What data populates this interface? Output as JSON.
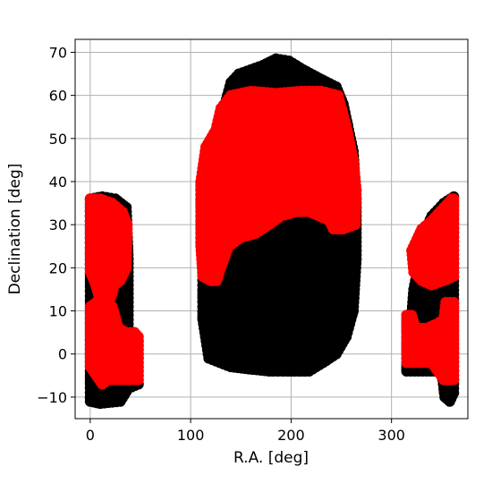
{
  "chart_data": {
    "type": "scatter",
    "title": "",
    "xlabel": "R.A. [deg]",
    "ylabel": "Declination [deg]",
    "xlim": [
      -15,
      376
    ],
    "ylim": [
      -15,
      73
    ],
    "xticks": [
      0,
      100,
      200,
      300
    ],
    "yticks": [
      -10,
      0,
      10,
      20,
      30,
      40,
      50,
      60,
      70
    ],
    "grid": true,
    "colors": {
      "black_series": "#000000",
      "red_series": "#ff0000",
      "grid": "#b0b0b0"
    },
    "series": [
      {
        "color": "#000000",
        "regions": [
          {
            "outline": [
              [
                0,
                -11
              ],
              [
                0,
                36
              ],
              [
                12,
                36.5
              ],
              [
                25,
                36
              ],
              [
                36,
                34
              ],
              [
                38,
                22
              ],
              [
                38,
                5
              ],
              [
                44,
                5
              ],
              [
                48,
                3
              ],
              [
                48,
                -7
              ],
              [
                38,
                -8
              ],
              [
                30,
                -11
              ],
              [
                10,
                -11.5
              ]
            ]
          },
          {
            "outline": [
              [
                125,
                48
              ],
              [
                133,
                57
              ],
              [
                140,
                63
              ],
              [
                148,
                65
              ],
              [
                160,
                66
              ],
              [
                172,
                67
              ],
              [
                185,
                68.5
              ],
              [
                198,
                68
              ],
              [
                212,
                66
              ],
              [
                228,
                64
              ],
              [
                245,
                62
              ],
              [
                252,
                58
              ],
              [
                262,
                47
              ],
              [
                265,
                36
              ],
              [
                265,
                22
              ],
              [
                262,
                10
              ],
              [
                255,
                4
              ],
              [
                245,
                0
              ],
              [
                232,
                -2
              ],
              [
                218,
                -4
              ],
              [
                200,
                -4
              ],
              [
                178,
                -4
              ],
              [
                158,
                -3.5
              ],
              [
                140,
                -3
              ],
              [
                118,
                -1
              ],
              [
                112,
                8
              ],
              [
                112,
                30
              ],
              [
                115,
                40
              ]
            ]
          },
          {
            "outline": [
              [
                315,
                -4
              ],
              [
                315,
                9
              ],
              [
                320,
                9
              ],
              [
                322,
                15
              ],
              [
                328,
                22
              ],
              [
                330,
                27
              ],
              [
                340,
                32
              ],
              [
                352,
                35
              ],
              [
                362,
                36.5
              ],
              [
                362,
                -9
              ],
              [
                358,
                -11
              ],
              [
                353,
                -10
              ],
              [
                350,
                -4
              ],
              [
                335,
                -4
              ]
            ]
          }
        ]
      },
      {
        "color": "#ff0000",
        "regions": [
          {
            "outline": [
              [
                0,
                19
              ],
              [
                0,
                36
              ],
              [
                10,
                36
              ],
              [
                22,
                35
              ],
              [
                32,
                33
              ],
              [
                37,
                30
              ],
              [
                36,
                20
              ],
              [
                30,
                17
              ],
              [
                24,
                16
              ],
              [
                22,
                14
              ],
              [
                18,
                12
              ],
              [
                8,
                14
              ],
              [
                4,
                17
              ]
            ]
          },
          {
            "outline": [
              [
                0,
                -3
              ],
              [
                0,
                11
              ],
              [
                6,
                12
              ],
              [
                12,
                14
              ],
              [
                22,
                11
              ],
              [
                28,
                6
              ],
              [
                36,
                5
              ],
              [
                44,
                5
              ],
              [
                48,
                4
              ],
              [
                48,
                -6
              ],
              [
                40,
                -6
              ],
              [
                30,
                -6
              ],
              [
                18,
                -6
              ],
              [
                12,
                -7
              ],
              [
                6,
                -5
              ]
            ]
          },
          {
            "outline": [
              [
                110,
                40
              ],
              [
                115,
                48
              ],
              [
                125,
                52
              ],
              [
                130,
                57
              ],
              [
                140,
                60
              ],
              [
                160,
                61
              ],
              [
                185,
                60.5
              ],
              [
                210,
                61
              ],
              [
                230,
                61
              ],
              [
                247,
                60
              ],
              [
                255,
                53
              ],
              [
                262,
                45
              ],
              [
                265,
                38
              ],
              [
                264,
                30
              ],
              [
                252,
                29
              ],
              [
                242,
                29
              ],
              [
                238,
                31
              ],
              [
                228,
                32
              ],
              [
                218,
                33
              ],
              [
                205,
                33
              ],
              [
                190,
                32
              ],
              [
                178,
                30
              ],
              [
                165,
                28
              ],
              [
                150,
                27
              ],
              [
                138,
                25
              ],
              [
                130,
                20
              ],
              [
                126,
                17
              ],
              [
                120,
                17
              ],
              [
                112,
                18
              ],
              [
                110,
                25
              ]
            ]
          },
          {
            "outline": [
              [
                320,
                24
              ],
              [
                330,
                29
              ],
              [
                340,
                31
              ],
              [
                352,
                34
              ],
              [
                360,
                36
              ],
              [
                362,
                36
              ],
              [
                362,
                18
              ],
              [
                352,
                17
              ],
              [
                340,
                16
              ],
              [
                330,
                17
              ],
              [
                322,
                19
              ]
            ]
          },
          {
            "outline": [
              [
                315,
                -2
              ],
              [
                315,
                9
              ],
              [
                320,
                9
              ],
              [
                324,
                6
              ],
              [
                335,
                6
              ],
              [
                345,
                7
              ],
              [
                352,
                8
              ],
              [
                354,
                12
              ],
              [
                362,
                12
              ],
              [
                362,
                -6
              ],
              [
                352,
                -6
              ],
              [
                340,
                -2
              ],
              [
                330,
                -2
              ],
              [
                320,
                -2
              ]
            ]
          }
        ]
      }
    ]
  }
}
